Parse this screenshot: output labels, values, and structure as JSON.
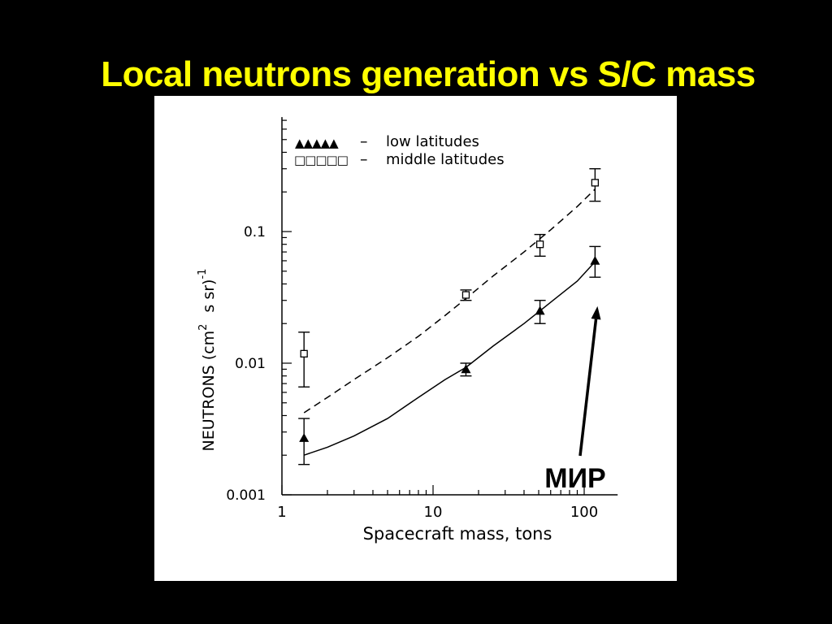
{
  "slide": {
    "title": "Local neutrons generation vs S/C mass"
  },
  "chart_data": {
    "type": "scatter",
    "xlabel": "Spacecraft  mass,  tons",
    "ylabel_main": "NEUTRONS  (cm",
    "ylabel_exp": "2",
    "ylabel_tail": "s  sr)",
    "ylabel_exp2": "-1",
    "xscale": "log",
    "yscale": "log",
    "xlim": [
      1,
      130
    ],
    "ylim": [
      0.001,
      0.7
    ],
    "x_ticks": [
      {
        "value": 1,
        "label": "1"
      },
      {
        "value": 10,
        "label": "10"
      },
      {
        "value": 100,
        "label": "100"
      }
    ],
    "y_ticks": [
      {
        "value": 0.001,
        "label": "0.001"
      },
      {
        "value": 0.01,
        "label": "0.01"
      },
      {
        "value": 0.1,
        "label": "0.1"
      }
    ],
    "legend": {
      "placement": "top-left",
      "entries": [
        {
          "label": "low latitudes",
          "marker": "filled-triangle",
          "symbols": "▲▲▲▲▲",
          "dash": "–"
        },
        {
          "label": "middle latitudes",
          "marker": "open-square",
          "symbols": "□□□□□",
          "dash": "–"
        }
      ]
    },
    "series": [
      {
        "name": "low latitudes",
        "marker": "filled-triangle",
        "points": [
          {
            "x": 1.4,
            "y": 0.0027,
            "ylow": 0.0017,
            "yhigh": 0.0038
          },
          {
            "x": 16.5,
            "y": 0.009,
            "ylow": 0.008,
            "yhigh": 0.01
          },
          {
            "x": 51,
            "y": 0.025,
            "ylow": 0.02,
            "yhigh": 0.03
          },
          {
            "x": 118,
            "y": 0.06,
            "ylow": 0.045,
            "yhigh": 0.077
          }
        ],
        "fit": {
          "style": "solid",
          "points": [
            [
              1.4,
              0.002
            ],
            [
              2,
              0.0023
            ],
            [
              3,
              0.0028
            ],
            [
              5,
              0.0038
            ],
            [
              8,
              0.0055
            ],
            [
              12,
              0.0075
            ],
            [
              16.5,
              0.0093
            ],
            [
              25,
              0.0135
            ],
            [
              40,
              0.02
            ],
            [
              60,
              0.029
            ],
            [
              90,
              0.042
            ],
            [
              118,
              0.059
            ]
          ]
        }
      },
      {
        "name": "middle latitudes",
        "marker": "open-square",
        "points": [
          {
            "x": 1.4,
            "y": 0.0118,
            "ylow": 0.0066,
            "yhigh": 0.0172
          },
          {
            "x": 16.5,
            "y": 0.033,
            "ylow": 0.03,
            "yhigh": 0.036
          },
          {
            "x": 51,
            "y": 0.08,
            "ylow": 0.065,
            "yhigh": 0.095
          },
          {
            "x": 118,
            "y": 0.235,
            "ylow": 0.17,
            "yhigh": 0.3
          }
        ],
        "fit": {
          "style": "dashed",
          "points": [
            [
              1.4,
              0.0042
            ],
            [
              2,
              0.0055
            ],
            [
              3,
              0.0075
            ],
            [
              5,
              0.011
            ],
            [
              8,
              0.016
            ],
            [
              12,
              0.023
            ],
            [
              16.5,
              0.031
            ],
            [
              25,
              0.046
            ],
            [
              40,
              0.07
            ],
            [
              60,
              0.103
            ],
            [
              90,
              0.155
            ],
            [
              118,
              0.21
            ]
          ]
        }
      }
    ],
    "annotation": {
      "text": "МИР",
      "target": {
        "x": 118,
        "y": 0.035
      },
      "color": "#000000"
    }
  }
}
